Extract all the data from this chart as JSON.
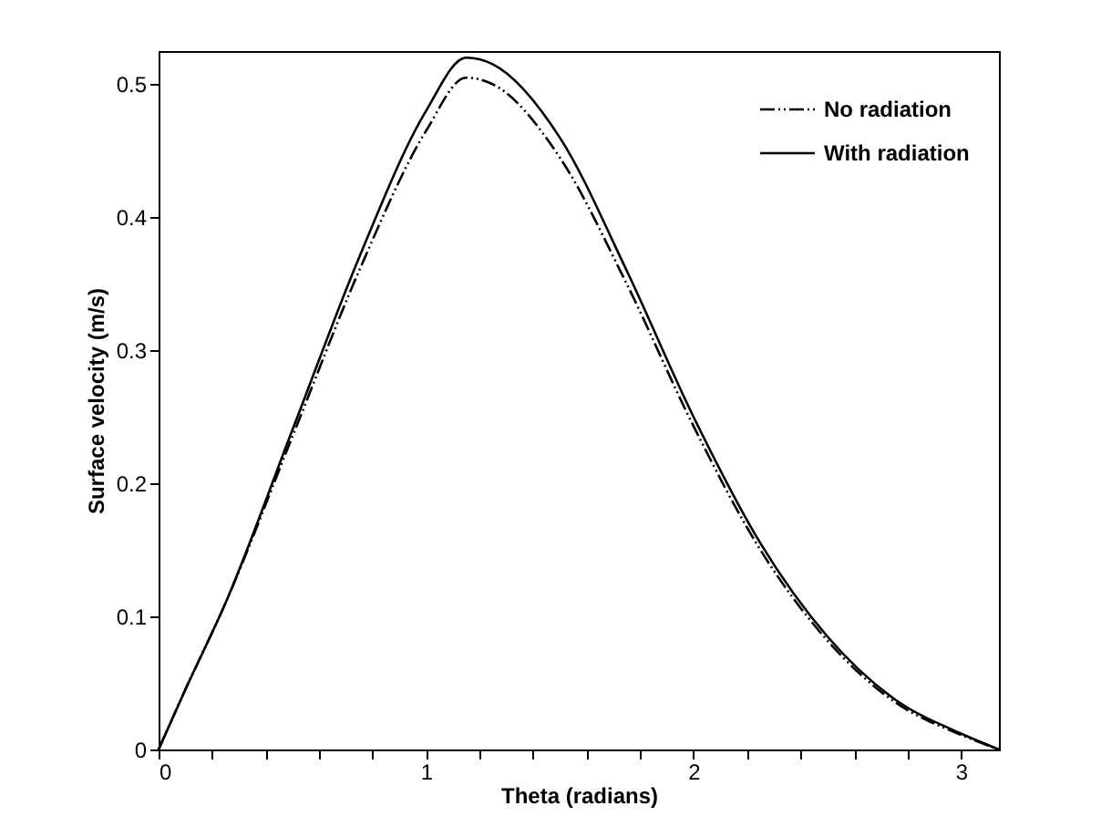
{
  "chart_data": {
    "type": "line",
    "xlabel": "Theta (radians)",
    "ylabel": "Surface velocity (m/s)",
    "xlim": [
      0,
      3.1416
    ],
    "ylim": [
      0,
      0.525
    ],
    "xticks": [
      0,
      {
        "value": 0.2,
        "label": null
      },
      {
        "value": 0.4,
        "label": null
      },
      {
        "value": 0.6,
        "label": null
      },
      {
        "value": 0.8,
        "label": null
      },
      1,
      {
        "value": 1.2,
        "label": null
      },
      {
        "value": 1.4,
        "label": null
      },
      {
        "value": 1.6,
        "label": null
      },
      {
        "value": 1.8,
        "label": null
      },
      2,
      {
        "value": 2.2,
        "label": null
      },
      {
        "value": 2.4,
        "label": null
      },
      {
        "value": 2.6,
        "label": null
      },
      {
        "value": 2.8,
        "label": null
      },
      3
    ],
    "yticks": [
      0,
      0.1,
      0.2,
      0.3,
      0.4,
      0.5
    ],
    "grid": false,
    "legend": "top right",
    "marker": "none",
    "series": [
      {
        "name": "No radiation",
        "color": "#000000",
        "line_style": "dashdotdot",
        "x": [
          0,
          0.1,
          0.25,
          0.5,
          0.75,
          1.0,
          1.15,
          1.25,
          1.5,
          1.75,
          2.0,
          2.25,
          2.5,
          2.75,
          3.0,
          3.1416
        ],
        "values": [
          0,
          0.045,
          0.11,
          0.235,
          0.36,
          0.465,
          0.505,
          0.5,
          0.445,
          0.35,
          0.243,
          0.15,
          0.082,
          0.036,
          0.011,
          0
        ]
      },
      {
        "name": "With radiation",
        "color": "#000000",
        "line_style": "solid",
        "x": [
          0,
          0.1,
          0.25,
          0.5,
          0.75,
          1.0,
          1.15,
          1.25,
          1.5,
          1.75,
          2.0,
          2.25,
          2.5,
          2.75,
          3.0,
          3.1416
        ],
        "values": [
          0,
          0.045,
          0.11,
          0.24,
          0.37,
          0.48,
          0.52,
          0.515,
          0.46,
          0.36,
          0.25,
          0.155,
          0.085,
          0.038,
          0.012,
          0
        ]
      }
    ]
  }
}
